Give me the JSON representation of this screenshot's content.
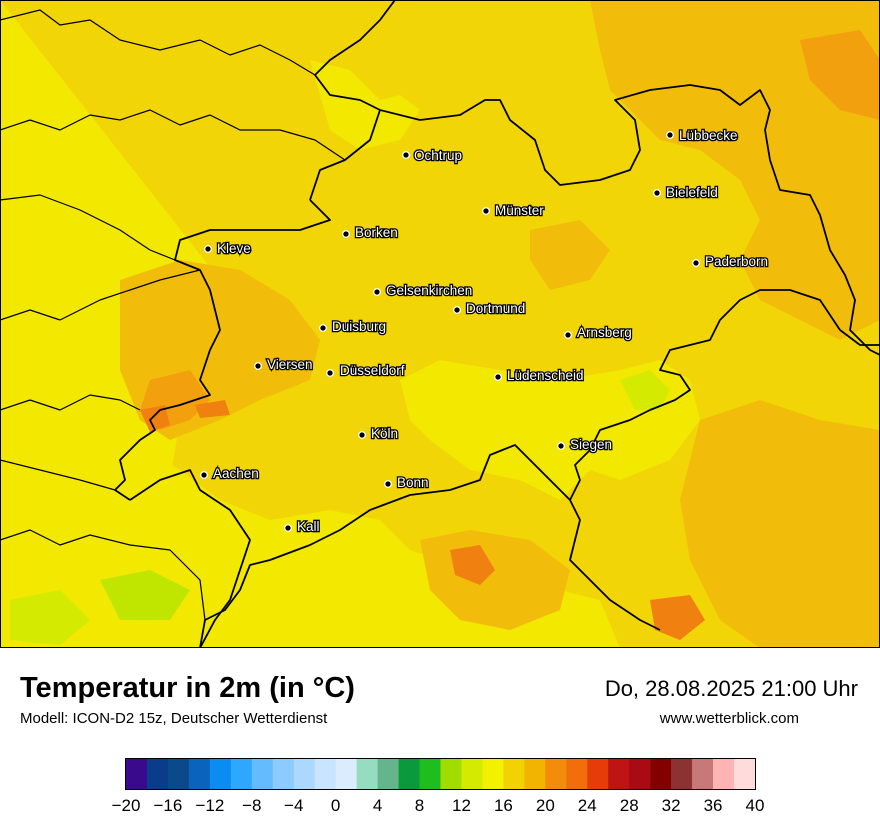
{
  "map": {
    "colors": {
      "yellow": "#f2e800",
      "gold": "#f2d506",
      "amber": "#f2bd0a",
      "orange": "#f2a00d",
      "deep_orange": "#f08010",
      "lime": "#d4ea00",
      "green_lime": "#c0e600",
      "border": "#000000"
    },
    "cities": [
      {
        "name": "Ochtrup"
      },
      {
        "name": "Lübbecke"
      },
      {
        "name": "Bielefeld"
      },
      {
        "name": "Münster"
      },
      {
        "name": "Borken"
      },
      {
        "name": "Kleve"
      },
      {
        "name": "Paderborn"
      },
      {
        "name": "Gelsenkirchen"
      },
      {
        "name": "Dortmund"
      },
      {
        "name": "Duisburg"
      },
      {
        "name": "Arnsberg"
      },
      {
        "name": "Viersen"
      },
      {
        "name": "Düsseldorf"
      },
      {
        "name": "Lüdenscheid"
      },
      {
        "name": "Köln"
      },
      {
        "name": "Siegen"
      },
      {
        "name": "Aachen"
      },
      {
        "name": "Bonn"
      },
      {
        "name": "Kall"
      }
    ]
  },
  "footer": {
    "title": "Temperatur in 2m (in °C)",
    "subtitle": "Modell: ICON-D2 15z, Deutscher Wetterdienst",
    "date": "Do, 28.08.2025 21:00 Uhr",
    "website": "www.wetterblick.com"
  },
  "legend": {
    "colors": [
      "#3a0a8c",
      "#0a3c8c",
      "#0a4a8a",
      "#0a64be",
      "#0a8cf0",
      "#2ea8ff",
      "#64bcff",
      "#8ccaff",
      "#acd8ff",
      "#c8e4ff",
      "#dcecff",
      "#96dcc0",
      "#64b48c",
      "#0a9a3c",
      "#1ebe1e",
      "#a0dc00",
      "#d4ea00",
      "#f2f200",
      "#f2d200",
      "#f2b400",
      "#f28c0a",
      "#f26e0a",
      "#e63c0a",
      "#be1414",
      "#aa0a14",
      "#820000",
      "#8c3232",
      "#c87878",
      "#ffb4b4",
      "#ffdcdc"
    ],
    "ticks": [
      "−20",
      "−16",
      "−12",
      "−8",
      "−4",
      "0",
      "4",
      "8",
      "12",
      "16",
      "20",
      "24",
      "28",
      "32",
      "36",
      "40"
    ]
  }
}
